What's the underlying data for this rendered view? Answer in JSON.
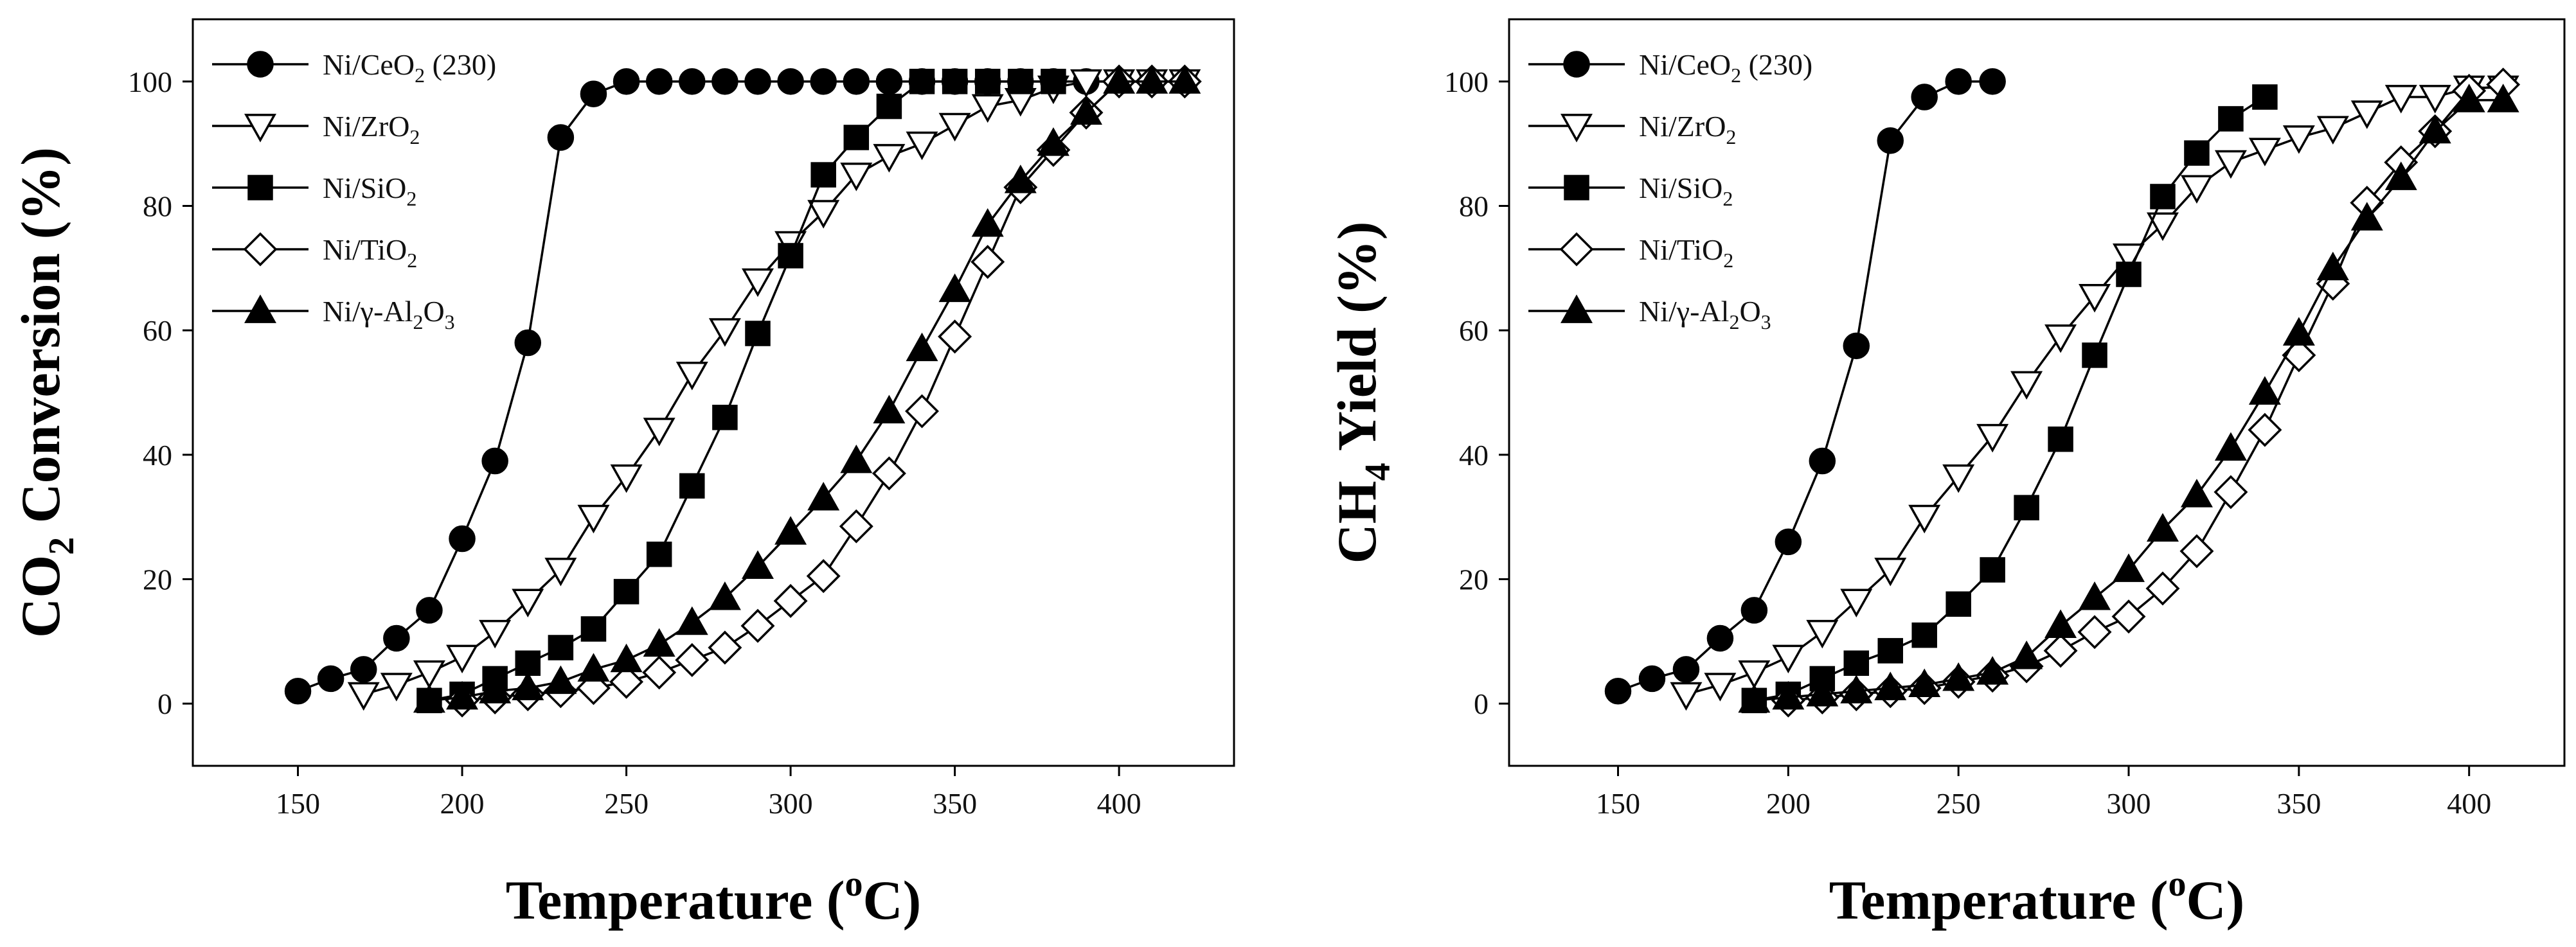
{
  "chart_data": [
    {
      "type": "line",
      "title": "",
      "xlabel": "Temperature (oC)",
      "ylabel": "CO2 Conversion (%)",
      "xlabel_parts": {
        "main": "Temperature (",
        "sup": "o",
        "end": "C)"
      },
      "ylabel_parts": {
        "pre": "CO",
        "sub": "2",
        "post": " Conversion (%)"
      },
      "xlim": [
        118,
        435
      ],
      "ylim": [
        -10,
        110
      ],
      "xticks": [
        150,
        200,
        250,
        300,
        350,
        400
      ],
      "yticks": [
        0,
        20,
        40,
        60,
        80,
        100
      ],
      "legend_position": "top-left",
      "series": [
        {
          "name": "Ni/CeO2 (230)",
          "label_base": "Ni/CeO",
          "label_sub": "2",
          "label_post": " (230)",
          "marker": "circle",
          "fill": "#000000",
          "x": [
            150,
            160,
            170,
            180,
            190,
            200,
            210,
            220,
            230,
            240,
            250,
            260,
            270,
            280,
            290,
            300,
            310,
            320,
            330,
            340,
            350,
            360,
            370,
            380,
            390,
            400,
            410,
            420
          ],
          "y": [
            2,
            4,
            5.5,
            10.5,
            15,
            26.5,
            39,
            58,
            91,
            98,
            100,
            100,
            100,
            100,
            100,
            100,
            100,
            100,
            100,
            100,
            100,
            100,
            100,
            100,
            100,
            100,
            100,
            100
          ]
        },
        {
          "name": "Ni/ZrO2",
          "label_base": "Ni/ZrO",
          "label_sub": "2",
          "label_post": "",
          "marker": "triangle-down",
          "fill": "#ffffff",
          "x": [
            170,
            180,
            190,
            200,
            210,
            220,
            230,
            240,
            250,
            260,
            270,
            280,
            290,
            300,
            310,
            320,
            330,
            340,
            350,
            360,
            370,
            380,
            390,
            400,
            410,
            420
          ],
          "y": [
            1.5,
            3,
            5,
            7.5,
            11.5,
            16.5,
            21.5,
            30,
            36.5,
            44,
            53,
            60,
            68,
            74,
            79,
            85,
            88,
            90,
            93,
            96,
            97,
            99,
            100,
            100,
            100,
            100
          ]
        },
        {
          "name": "Ni/SiO2",
          "label_base": "Ni/SiO",
          "label_sub": "2",
          "label_post": "",
          "marker": "square",
          "fill": "#000000",
          "x": [
            190,
            200,
            210,
            220,
            230,
            240,
            250,
            260,
            270,
            280,
            290,
            300,
            310,
            320,
            330,
            340,
            350,
            360,
            370,
            380
          ],
          "y": [
            0.5,
            1.5,
            4,
            6.5,
            9,
            12,
            18,
            24,
            35,
            46,
            59.5,
            72,
            85,
            91,
            96,
            100,
            100,
            100,
            100,
            100
          ]
        },
        {
          "name": "Ni/TiO2",
          "label_base": "Ni/TiO",
          "label_sub": "2",
          "label_post": "",
          "marker": "diamond",
          "fill": "#ffffff",
          "x": [
            200,
            210,
            220,
            230,
            240,
            250,
            260,
            270,
            280,
            290,
            300,
            310,
            320,
            330,
            340,
            350,
            360,
            370,
            380,
            390,
            400,
            410,
            420
          ],
          "y": [
            0.5,
            1,
            1.5,
            2,
            2.5,
            3.5,
            5,
            7,
            9,
            12.5,
            16.5,
            20.5,
            28.5,
            37,
            47,
            59,
            71,
            83,
            89,
            95,
            100,
            100,
            100
          ]
        },
        {
          "name": "Ni/γ-Al2O3",
          "label_base": "Ni/γ-Al",
          "label_sub": "2",
          "label_post": "O",
          "label_sub2": "3",
          "marker": "triangle-up",
          "fill": "#000000",
          "x": [
            190,
            200,
            210,
            220,
            230,
            240,
            250,
            260,
            270,
            280,
            290,
            300,
            310,
            320,
            330,
            340,
            350,
            360,
            370,
            380,
            390,
            400,
            410,
            420
          ],
          "y": [
            0.5,
            1,
            2,
            2.5,
            3.5,
            5.5,
            7,
            9.5,
            13,
            17,
            22,
            27.5,
            33,
            39,
            47,
            57,
            66.5,
            77,
            84,
            90,
            95,
            100,
            100,
            100
          ]
        }
      ]
    },
    {
      "type": "line",
      "title": "",
      "xlabel": "Temperature (oC)",
      "ylabel": "CH4 Yield (%)",
      "xlabel_parts": {
        "main": "Temperature (",
        "sup": "o",
        "end": "C)"
      },
      "ylabel_parts": {
        "pre": "CH",
        "sub": "4",
        "post": " Yield (%)"
      },
      "xlim": [
        118,
        428
      ],
      "ylim": [
        -10,
        110
      ],
      "xticks": [
        150,
        200,
        250,
        300,
        350,
        400
      ],
      "yticks": [
        0,
        20,
        40,
        60,
        80,
        100
      ],
      "legend_position": "top-left",
      "series": [
        {
          "name": "Ni/CeO2 (230)",
          "label_base": "Ni/CeO",
          "label_sub": "2",
          "label_post": " (230)",
          "marker": "circle",
          "fill": "#000000",
          "x": [
            150,
            160,
            170,
            180,
            190,
            200,
            210,
            220,
            230,
            240,
            250,
            260
          ],
          "y": [
            2,
            4,
            5.5,
            10.5,
            15,
            26,
            39,
            57.5,
            90.5,
            97.5,
            100,
            100
          ]
        },
        {
          "name": "Ni/ZrO2",
          "label_base": "Ni/ZrO",
          "label_sub": "2",
          "label_post": "",
          "marker": "triangle-down",
          "fill": "#ffffff",
          "x": [
            170,
            180,
            190,
            200,
            210,
            220,
            230,
            240,
            250,
            260,
            270,
            280,
            290,
            300,
            310,
            320,
            330,
            340,
            350,
            360,
            370,
            380,
            390,
            400,
            410
          ],
          "y": [
            1.5,
            3,
            5,
            7.5,
            11.5,
            16.5,
            21.5,
            30,
            36.5,
            43,
            51.5,
            59,
            65.5,
            72,
            77,
            83,
            87,
            89,
            91,
            92.5,
            95,
            97.5,
            97.5,
            99,
            99
          ]
        },
        {
          "name": "Ni/SiO2",
          "label_base": "Ni/SiO",
          "label_sub": "2",
          "label_post": "",
          "marker": "square",
          "fill": "#000000",
          "x": [
            190,
            200,
            210,
            220,
            230,
            240,
            250,
            260,
            270,
            280,
            290,
            300,
            310,
            320,
            330,
            340
          ],
          "y": [
            0.5,
            1.5,
            4,
            6.5,
            8.5,
            11,
            16,
            21.5,
            31.5,
            42.5,
            56,
            69,
            81.5,
            88.5,
            94,
            97.5
          ]
        },
        {
          "name": "Ni/TiO2",
          "label_base": "Ni/TiO",
          "label_sub": "2",
          "label_post": "",
          "marker": "diamond",
          "fill": "#ffffff",
          "x": [
            200,
            210,
            220,
            230,
            240,
            250,
            260,
            270,
            280,
            290,
            300,
            310,
            320,
            330,
            340,
            350,
            360,
            370,
            380,
            390,
            400,
            410
          ],
          "y": [
            0.5,
            1,
            1.5,
            2,
            2.5,
            3.5,
            4.5,
            6,
            8.5,
            11.5,
            14,
            18.5,
            24.5,
            34,
            44,
            56,
            67.5,
            80.5,
            87,
            92,
            98.5,
            99.5
          ]
        },
        {
          "name": "Ni/γ-Al2O3",
          "label_base": "Ni/γ-Al",
          "label_sub": "2",
          "label_post": "O",
          "label_sub2": "3",
          "marker": "triangle-up",
          "fill": "#000000",
          "x": [
            190,
            200,
            210,
            220,
            230,
            240,
            250,
            260,
            270,
            280,
            290,
            300,
            310,
            320,
            330,
            340,
            350,
            360,
            370,
            380,
            390,
            400,
            410
          ],
          "y": [
            0.5,
            1,
            1.5,
            2,
            2.5,
            3,
            4,
            5,
            7.5,
            12.5,
            17,
            21.5,
            28,
            33.5,
            41,
            50,
            59.5,
            70,
            78,
            84.5,
            92,
            97,
            97
          ]
        }
      ]
    }
  ]
}
